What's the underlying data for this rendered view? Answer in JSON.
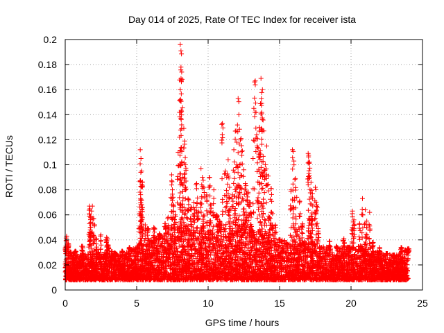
{
  "chart_data": {
    "type": "scatter",
    "title": "Day 014 of 2025, Rate Of TEC Index for receiver ista",
    "xlabel": "GPS time / hours",
    "ylabel": "ROTI / TECUs",
    "xlim": [
      0,
      25
    ],
    "ylim": [
      0,
      0.2
    ],
    "xticks": [
      0,
      5,
      10,
      15,
      20,
      25
    ],
    "yticks": [
      0,
      0.02,
      0.04,
      0.06,
      0.08,
      0.1,
      0.12,
      0.14,
      0.16,
      0.18,
      0.2
    ],
    "xtick_labels": [
      "0",
      "5",
      "10",
      "15",
      "20",
      "25"
    ],
    "ytick_labels": [
      "0",
      "0.02",
      "0.04",
      "0.06",
      "0.08",
      "0.1",
      "0.12",
      "0.14",
      "0.16",
      "0.18",
      "0.2"
    ],
    "grid": true,
    "marker": "+",
    "marker_color": "#ff0000",
    "series": [
      {
        "name": "ROTI",
        "points": [
          [
            8.05,
            0.196
          ],
          [
            8.1,
            0.191
          ],
          [
            8.1,
            0.178
          ],
          [
            8.15,
            0.174
          ],
          [
            8.05,
            0.16
          ],
          [
            8.1,
            0.151
          ],
          [
            8.3,
            0.129
          ],
          [
            8.35,
            0.119
          ],
          [
            8.0,
            0.122
          ],
          [
            7.9,
            0.11
          ],
          [
            8.4,
            0.1
          ],
          [
            8.2,
            0.09
          ],
          [
            8.45,
            0.087
          ],
          [
            8.6,
            0.073
          ],
          [
            8.8,
            0.066
          ],
          [
            9.0,
            0.07
          ],
          [
            9.2,
            0.085
          ],
          [
            9.3,
            0.063
          ],
          [
            7.45,
            0.092
          ],
          [
            7.5,
            0.08
          ],
          [
            7.55,
            0.074
          ],
          [
            7.7,
            0.06
          ],
          [
            7.2,
            0.058
          ],
          [
            7.0,
            0.053
          ],
          [
            5.25,
            0.112
          ],
          [
            5.3,
            0.105
          ],
          [
            5.35,
            0.095
          ],
          [
            5.4,
            0.086
          ],
          [
            5.3,
            0.072
          ],
          [
            5.4,
            0.066
          ],
          [
            5.2,
            0.061
          ],
          [
            5.6,
            0.052
          ],
          [
            5.8,
            0.049
          ],
          [
            6.2,
            0.05
          ],
          [
            6.6,
            0.045
          ],
          [
            1.7,
            0.067
          ],
          [
            1.9,
            0.067
          ],
          [
            1.8,
            0.059
          ],
          [
            1.7,
            0.053
          ],
          [
            1.75,
            0.05
          ],
          [
            2.0,
            0.057
          ],
          [
            2.2,
            0.041
          ],
          [
            2.5,
            0.044
          ],
          [
            2.9,
            0.042
          ],
          [
            1.2,
            0.035
          ],
          [
            0.1,
            0.043
          ],
          [
            0.2,
            0.037
          ],
          [
            9.5,
            0.097
          ],
          [
            9.6,
            0.09
          ],
          [
            9.7,
            0.082
          ],
          [
            9.9,
            0.076
          ],
          [
            10.1,
            0.09
          ],
          [
            10.2,
            0.068
          ],
          [
            10.4,
            0.08
          ],
          [
            10.6,
            0.06
          ],
          [
            10.8,
            0.055
          ],
          [
            11.0,
            0.133
          ],
          [
            11.2,
            0.095
          ],
          [
            11.3,
            0.09
          ],
          [
            11.4,
            0.104
          ],
          [
            11.5,
            0.082
          ],
          [
            11.7,
            0.076
          ],
          [
            11.9,
            0.065
          ],
          [
            12.1,
            0.153
          ],
          [
            12.15,
            0.14
          ],
          [
            12.3,
            0.121
          ],
          [
            12.4,
            0.111
          ],
          [
            12.2,
            0.1
          ],
          [
            12.5,
            0.096
          ],
          [
            12.6,
            0.085
          ],
          [
            12.8,
            0.078
          ],
          [
            11.95,
            0.127
          ],
          [
            12.0,
            0.118
          ],
          [
            11.8,
            0.112
          ],
          [
            12.7,
            0.077
          ],
          [
            12.9,
            0.07
          ],
          [
            13.0,
            0.062
          ],
          [
            13.1,
            0.043
          ],
          [
            13.3,
            0.167
          ],
          [
            13.2,
            0.145
          ],
          [
            13.4,
            0.124
          ],
          [
            13.5,
            0.113
          ],
          [
            13.6,
            0.106
          ],
          [
            13.7,
            0.169
          ],
          [
            13.8,
            0.16
          ],
          [
            13.75,
            0.149
          ],
          [
            13.8,
            0.136
          ],
          [
            13.6,
            0.13
          ],
          [
            13.9,
            0.127
          ],
          [
            14.1,
            0.115
          ],
          [
            14.0,
            0.1
          ],
          [
            14.2,
            0.091
          ],
          [
            14.4,
            0.081
          ],
          [
            14.5,
            0.061
          ],
          [
            14.3,
            0.058
          ],
          [
            14.7,
            0.052
          ],
          [
            15.0,
            0.04
          ],
          [
            15.9,
            0.112
          ],
          [
            16.0,
            0.103
          ],
          [
            16.1,
            0.089
          ],
          [
            15.8,
            0.08
          ],
          [
            16.2,
            0.074
          ],
          [
            16.4,
            0.071
          ],
          [
            16.6,
            0.053
          ],
          [
            17.0,
            0.109
          ],
          [
            17.1,
            0.102
          ],
          [
            17.05,
            0.093
          ],
          [
            17.2,
            0.086
          ],
          [
            17.3,
            0.077
          ],
          [
            17.5,
            0.082
          ],
          [
            17.6,
            0.068
          ],
          [
            17.2,
            0.059
          ],
          [
            17.7,
            0.049
          ],
          [
            18.5,
            0.039
          ],
          [
            19.0,
            0.035
          ],
          [
            19.5,
            0.041
          ],
          [
            20.1,
            0.063
          ],
          [
            20.2,
            0.056
          ],
          [
            20.6,
            0.053
          ],
          [
            20.8,
            0.073
          ],
          [
            21.0,
            0.064
          ],
          [
            21.1,
            0.055
          ],
          [
            21.3,
            0.062
          ],
          [
            21.5,
            0.038
          ],
          [
            22.0,
            0.034
          ],
          [
            22.5,
            0.029
          ],
          [
            23.0,
            0.028
          ],
          [
            23.5,
            0.034
          ],
          [
            23.8,
            0.032
          ],
          [
            24.0,
            0.033
          ],
          [
            0.05,
            0.035
          ],
          [
            0.4,
            0.03
          ],
          [
            0.7,
            0.031
          ],
          [
            3.0,
            0.036
          ],
          [
            3.5,
            0.027
          ],
          [
            4.0,
            0.031
          ],
          [
            4.5,
            0.034
          ]
        ],
        "baseline": {
          "description_hours": [
            0,
            24
          ],
          "profile": [
            [
              0.0,
              0.008,
              0.03
            ],
            [
              1.0,
              0.008,
              0.028
            ],
            [
              2.0,
              0.008,
              0.03
            ],
            [
              3.0,
              0.008,
              0.032
            ],
            [
              4.0,
              0.008,
              0.028
            ],
            [
              5.0,
              0.008,
              0.035
            ],
            [
              6.0,
              0.008,
              0.04
            ],
            [
              7.0,
              0.008,
              0.045
            ],
            [
              8.0,
              0.008,
              0.05
            ],
            [
              9.0,
              0.008,
              0.05
            ],
            [
              10.0,
              0.008,
              0.048
            ],
            [
              11.0,
              0.008,
              0.052
            ],
            [
              12.0,
              0.008,
              0.05
            ],
            [
              13.0,
              0.008,
              0.048
            ],
            [
              14.0,
              0.008,
              0.045
            ],
            [
              15.0,
              0.008,
              0.04
            ],
            [
              16.0,
              0.008,
              0.04
            ],
            [
              17.0,
              0.008,
              0.04
            ],
            [
              18.0,
              0.008,
              0.035
            ],
            [
              19.0,
              0.008,
              0.033
            ],
            [
              20.0,
              0.008,
              0.035
            ],
            [
              21.0,
              0.008,
              0.035
            ],
            [
              22.0,
              0.008,
              0.03
            ],
            [
              23.0,
              0.008,
              0.028
            ],
            [
              24.0,
              0.008,
              0.03
            ]
          ],
          "density_per_hour": 260
        }
      }
    ]
  }
}
